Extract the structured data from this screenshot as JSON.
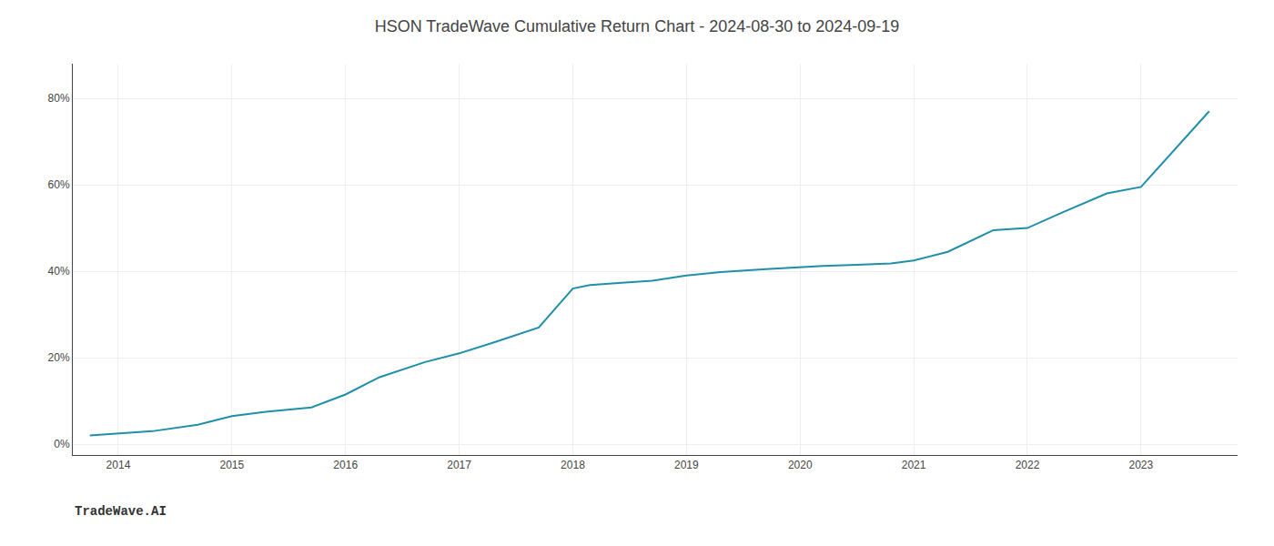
{
  "chart_data": {
    "type": "line",
    "title": "HSON TradeWave Cumulative Return Chart - 2024-08-30 to 2024-09-19",
    "annotations": [
      "TradeWave.AI"
    ],
    "x": [
      2013.75,
      2014.0,
      2014.3,
      2014.7,
      2015.0,
      2015.3,
      2015.7,
      2016.0,
      2016.3,
      2016.7,
      2017.0,
      2017.3,
      2017.7,
      2018.0,
      2018.15,
      2018.4,
      2018.7,
      2019.0,
      2019.3,
      2019.7,
      2020.0,
      2020.2,
      2020.5,
      2020.8,
      2021.0,
      2021.3,
      2021.7,
      2022.0,
      2022.3,
      2022.7,
      2023.0,
      2023.6
    ],
    "values": [
      0.02,
      0.025,
      0.03,
      0.045,
      0.065,
      0.075,
      0.085,
      0.115,
      0.155,
      0.19,
      0.21,
      0.235,
      0.27,
      0.36,
      0.368,
      0.373,
      0.378,
      0.39,
      0.398,
      0.405,
      0.41,
      0.412,
      0.415,
      0.418,
      0.425,
      0.445,
      0.495,
      0.5,
      0.535,
      0.58,
      0.595,
      0.77
    ],
    "color": "#1f8faa",
    "xlim": [
      2013.6,
      2023.85
    ],
    "xticks": [
      2014,
      2015,
      2016,
      2017,
      2018,
      2019,
      2020,
      2021,
      2022,
      2023
    ],
    "ylim": [
      -0.025,
      0.88
    ],
    "yticks": [
      {
        "value": 0.0,
        "label": "0%"
      },
      {
        "value": 0.2,
        "label": "20%"
      },
      {
        "value": 0.4,
        "label": "40%"
      },
      {
        "value": 0.6,
        "label": "60%"
      },
      {
        "value": 0.8,
        "label": "80%"
      }
    ],
    "grid": true
  }
}
